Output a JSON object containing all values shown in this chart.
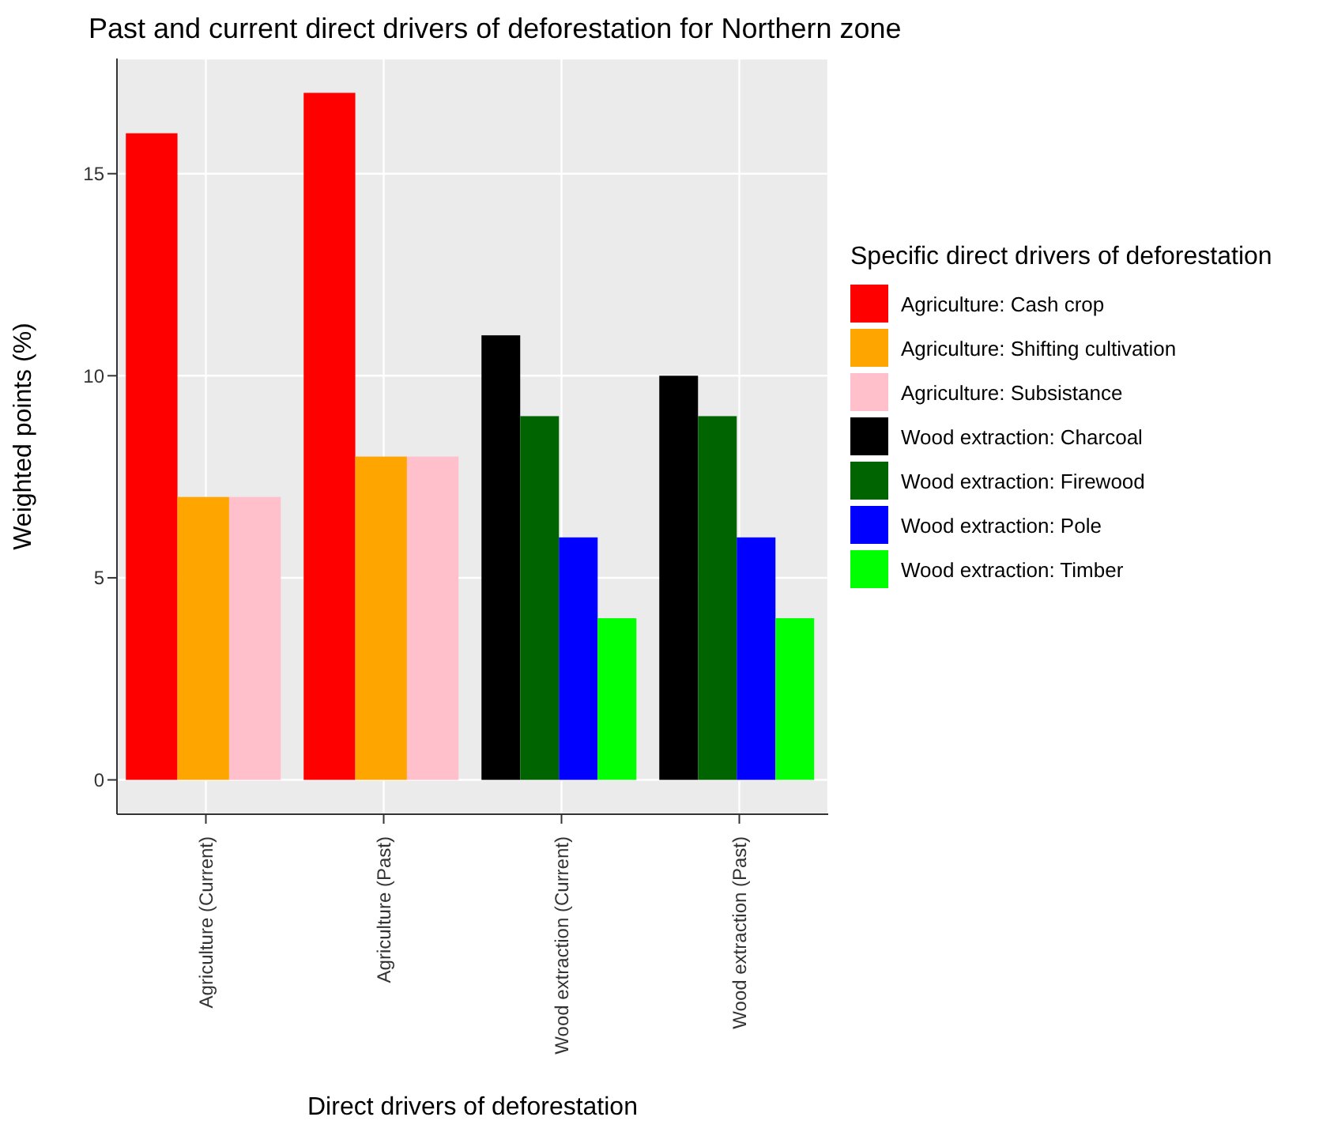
{
  "chart_data": {
    "type": "bar",
    "title": "Past and current direct drivers of deforestation for Northern zone",
    "xlabel": "Direct drivers of deforestation",
    "ylabel": "Weighted points (%)",
    "legend_title": "Specific direct drivers of deforestation",
    "categories": [
      "Agriculture (Current)",
      "Agriculture (Past)",
      "Wood extraction (Current)",
      "Wood extraction (Past)"
    ],
    "series": [
      {
        "name": "Agriculture: Cash crop",
        "color": "#ff0000",
        "values": [
          16,
          17,
          null,
          null
        ]
      },
      {
        "name": "Agriculture: Shifting cultivation",
        "color": "#ffa500",
        "values": [
          7,
          8,
          null,
          null
        ]
      },
      {
        "name": "Agriculture: Subsistance",
        "color": "#ffc0cb",
        "values": [
          7,
          8,
          null,
          null
        ]
      },
      {
        "name": "Wood extraction: Charcoal",
        "color": "#000000",
        "values": [
          null,
          null,
          11,
          10
        ]
      },
      {
        "name": "Wood extraction: Firewood",
        "color": "#006400",
        "values": [
          null,
          null,
          9,
          9
        ]
      },
      {
        "name": "Wood extraction: Pole",
        "color": "#0000ff",
        "values": [
          null,
          null,
          6,
          6
        ]
      },
      {
        "name": "Wood extraction: Timber",
        "color": "#00ff00",
        "values": [
          null,
          null,
          4,
          4
        ]
      }
    ],
    "ylim": [
      -0.85,
      17.85
    ],
    "yticks": [
      0,
      5,
      10,
      15
    ],
    "grid": true,
    "legend": "right"
  }
}
